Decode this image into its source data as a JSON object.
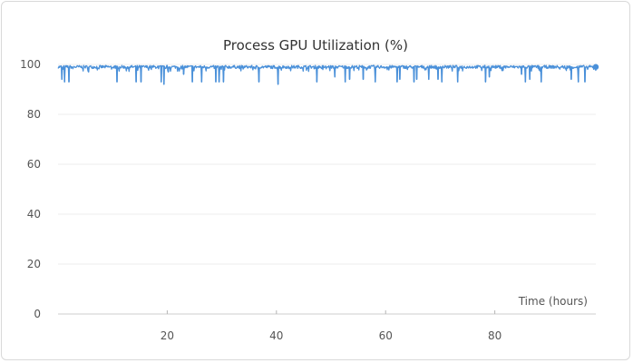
{
  "chart_data": {
    "type": "line",
    "title": "Process GPU Utilization (%)",
    "xlabel": "Time (hours)",
    "ylabel": "",
    "xlim": [
      0,
      98.5
    ],
    "ylim": [
      0,
      100
    ],
    "x_ticks": [
      20,
      40,
      60,
      80
    ],
    "y_ticks": [
      0,
      20,
      40,
      60,
      80,
      100
    ],
    "grid": true,
    "legend": "none",
    "series": [
      {
        "color": "#4a90d9",
        "baseline": 99,
        "x_end": 98.5,
        "dips": [
          {
            "x": 0.7,
            "y": 94
          },
          {
            "x": 1.2,
            "y": 93
          },
          {
            "x": 2.0,
            "y": 93
          },
          {
            "x": 5.6,
            "y": 97
          },
          {
            "x": 10.8,
            "y": 93
          },
          {
            "x": 14.3,
            "y": 93
          },
          {
            "x": 15.2,
            "y": 93
          },
          {
            "x": 18.9,
            "y": 93
          },
          {
            "x": 19.4,
            "y": 92
          },
          {
            "x": 20.2,
            "y": 97
          },
          {
            "x": 23.0,
            "y": 96
          },
          {
            "x": 24.6,
            "y": 93
          },
          {
            "x": 26.3,
            "y": 93
          },
          {
            "x": 28.9,
            "y": 93
          },
          {
            "x": 29.5,
            "y": 93
          },
          {
            "x": 30.3,
            "y": 93
          },
          {
            "x": 36.8,
            "y": 93
          },
          {
            "x": 40.3,
            "y": 92
          },
          {
            "x": 47.4,
            "y": 93
          },
          {
            "x": 50.7,
            "y": 95
          },
          {
            "x": 52.6,
            "y": 93
          },
          {
            "x": 53.4,
            "y": 94
          },
          {
            "x": 55.9,
            "y": 94
          },
          {
            "x": 58.1,
            "y": 93
          },
          {
            "x": 62.1,
            "y": 93
          },
          {
            "x": 62.6,
            "y": 94
          },
          {
            "x": 65.2,
            "y": 93
          },
          {
            "x": 65.7,
            "y": 94
          },
          {
            "x": 67.9,
            "y": 94
          },
          {
            "x": 69.6,
            "y": 94
          },
          {
            "x": 70.3,
            "y": 93
          },
          {
            "x": 73.2,
            "y": 93
          },
          {
            "x": 78.3,
            "y": 93
          },
          {
            "x": 79.0,
            "y": 95
          },
          {
            "x": 84.9,
            "y": 96
          },
          {
            "x": 85.6,
            "y": 93
          },
          {
            "x": 86.4,
            "y": 94
          },
          {
            "x": 88.5,
            "y": 93
          },
          {
            "x": 94.0,
            "y": 94
          },
          {
            "x": 95.3,
            "y": 93
          },
          {
            "x": 96.5,
            "y": 93
          }
        ]
      }
    ]
  }
}
